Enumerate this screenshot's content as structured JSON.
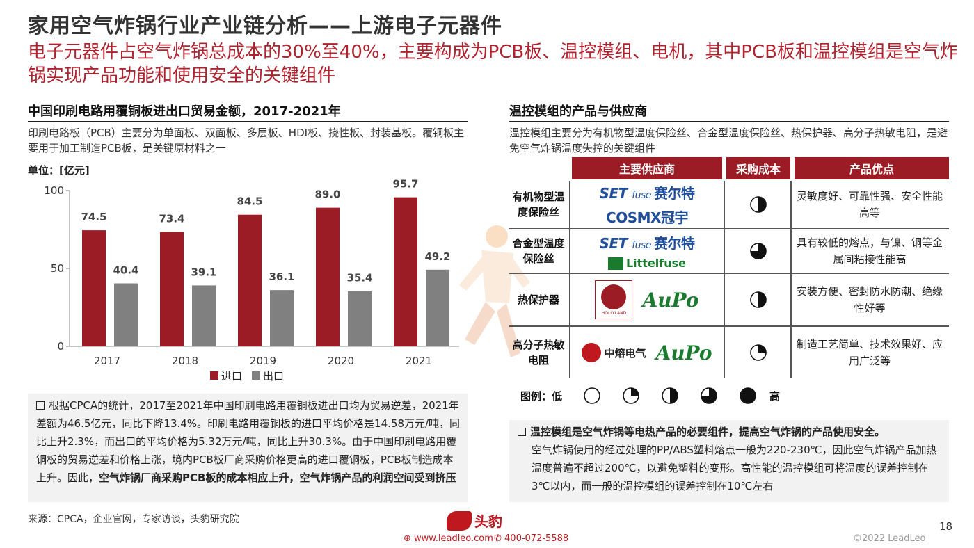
{
  "header": {
    "title": "家用空气炸锅行业产业链分析——上游电子元器件",
    "subtitle": "电子元器件占空气炸锅总成本的30%至40%，主要构成为PCB板、温控模组、电机，其中PCB板和温控模组是空气炸锅实现产品功能和使用安全的关键组件"
  },
  "left": {
    "section_title": "中国印刷电路用覆铜板进出口贸易金额，2017-2021年",
    "description": "印刷电路板（PCB）主要分为单面板、双面板、多层板、HDI板、挠性板、封装基板。覆铜板主要用于加工制造PCB板，是关键原材料之一",
    "unit": "单位：[亿元]",
    "bullet_normal": "根据CPCA的统计，2017至2021年中国印刷电路用覆铜板进出口均为贸易逆差，2021年差额为46.5亿元，同比下降13.4%。印刷电路用覆铜板的进口平均价格是14.58万元/吨，同比上升2.3%，而出口的平均价格为5.32万元/吨，同比上升30.3%。由于中国印刷电路用覆铜板的贸易逆差和价格上涨，境内PCB板厂商采购价格更高的进口覆铜板，PCB板制造成本上升。因此，",
    "bullet_bold": "空气炸锅厂商采购PCB板的成本相应上升，空气炸锅产品的利润空间受到挤压",
    "source": "来源：CPCA，企业官网，专家访谈，头豹研究院"
  },
  "chart_data": {
    "type": "bar",
    "categories": [
      "2017",
      "2018",
      "2019",
      "2020",
      "2021"
    ],
    "series": [
      {
        "name": "进口",
        "values": [
          74.5,
          73.4,
          84.5,
          89.0,
          95.7
        ],
        "color": "#9b1c24"
      },
      {
        "name": "出口",
        "values": [
          40.4,
          39.1,
          36.1,
          35.4,
          49.2
        ],
        "color": "#808080"
      }
    ],
    "value_labels": [
      [
        "74.5",
        "73.4",
        "84.5",
        "89.0",
        "95.7"
      ],
      [
        "40.4",
        "39.1",
        "36.1",
        "35.4",
        "49.2"
      ]
    ],
    "y_ticks": [
      "0",
      "50",
      "100"
    ],
    "ylim": [
      0,
      100
    ],
    "legend_position": "bottom-center",
    "title": "",
    "xlabel": "",
    "ylabel": ""
  },
  "right": {
    "section_title": "温控模组的产品与供应商",
    "description": "温控模组主要分为有机物型温度保险丝、合金型温度保险丝、热保护器、高分子热敏电阻，是避免空气炸锅温度失控的关键组件",
    "table": {
      "headers": [
        "主要供应商",
        "采购成本",
        "产品优点"
      ],
      "rows": [
        {
          "label": "有机物型温度保险丝",
          "suppliers": [
            "SET fuse 赛尔特",
            "COSMX 冠宇"
          ],
          "cost_level": 0.5,
          "advantage": "灵敏度好、可靠性强、安全性能高等"
        },
        {
          "label": "合金型温度保险丝",
          "suppliers": [
            "SET fuse 赛尔特",
            "Littelfuse"
          ],
          "cost_level": 0.75,
          "advantage": "具有较低的熔点，与镍、铜等金属间粘接性能高"
        },
        {
          "label": "热保护器",
          "suppliers": [
            "HOLLYLAND",
            "AuPo"
          ],
          "cost_level": 0.5,
          "advantage": "安装方便、密封防水防潮、绝缘性好等"
        },
        {
          "label": "高分子热敏电阻",
          "suppliers": [
            "中熔电气 SINOFUSE",
            "AuPo"
          ],
          "cost_level": 0.25,
          "advantage": "制造工艺简单、技术效果好、应用广泛等"
        }
      ]
    },
    "legend": {
      "label": "图例：低",
      "high": "高",
      "levels": [
        0,
        0.25,
        0.5,
        0.75,
        1
      ]
    },
    "bullet_bold": "温控模组是空气炸锅等电热产品的必要组件，提高空气炸锅的产品使用安全。",
    "bullet_normal": "空气炸锅使用的经过处理的PP/ABS塑料熔点一般为220-230℃，因此空气炸锅产品加热温度普遍不超过200℃，以避免塑料的变形。高性能的温控模组可将温度的误差控制在3℃以内，而一般的温控模组的误差控制在10℃左右"
  },
  "logos": {
    "set_brand": "SET",
    "set_fuse": "fuse",
    "set_cn": "赛尔特",
    "cosmx": "COSMX冠宇",
    "littelfuse": "Littelfuse",
    "hollyland": "HOLLYLAND",
    "aupo": "AuPo",
    "zhongrong": "中熔电气"
  },
  "footer": {
    "brand": "头豹",
    "website": "www.leadleo.com",
    "phone": "400-072-5588",
    "page": "18",
    "copyright": "©2022 LeadLeo"
  }
}
